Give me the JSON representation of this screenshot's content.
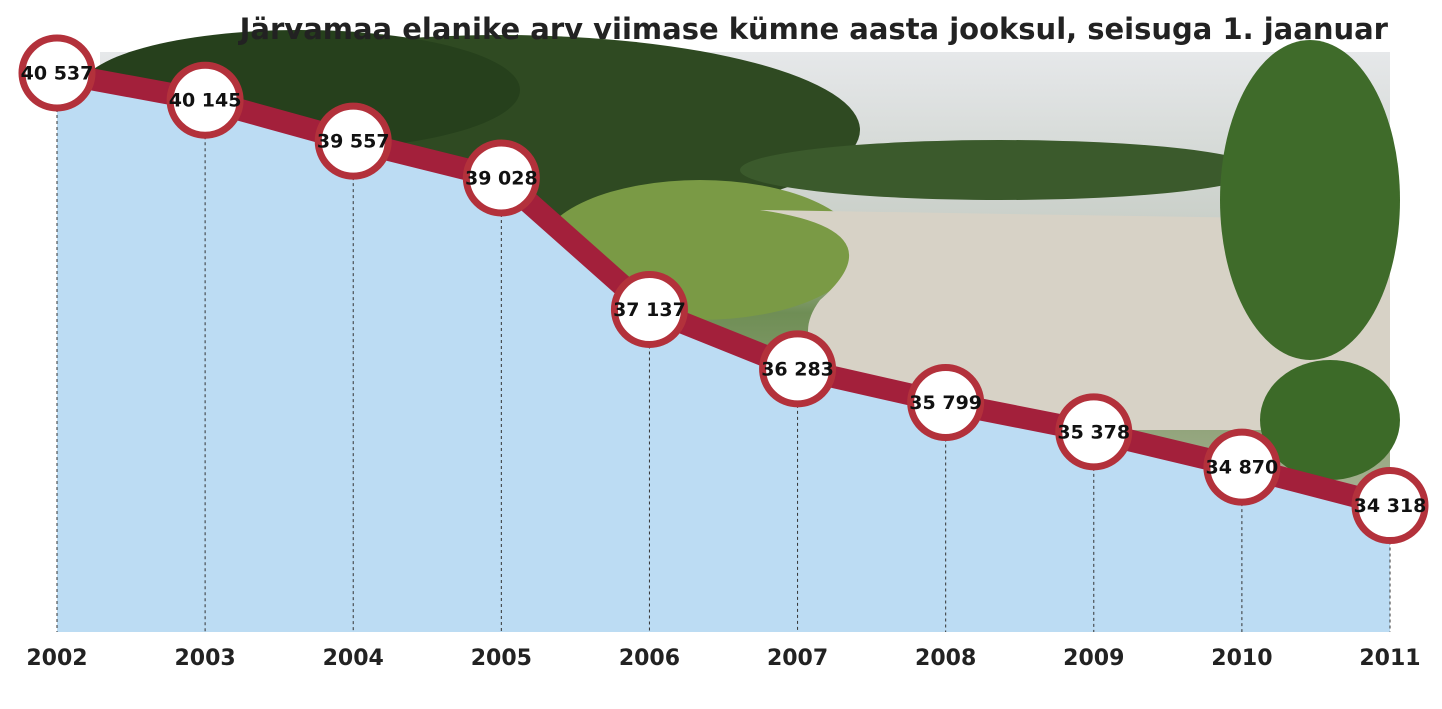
{
  "chart_data": {
    "type": "area",
    "title": "Järvamaa elanike arv viimase kümne aasta jooksul, seisuga 1. jaanuar",
    "x": [
      2002,
      2003,
      2004,
      2005,
      2006,
      2007,
      2008,
      2009,
      2010,
      2011
    ],
    "values": [
      40537,
      40145,
      39557,
      39028,
      37137,
      36283,
      35799,
      35378,
      34870,
      34318
    ],
    "value_labels": [
      "40 537",
      "40 145",
      "39 557",
      "39 028",
      "37 137",
      "36 283",
      "35 799",
      "35 378",
      "34 870",
      "34 318"
    ],
    "xlim": [
      2002,
      2011
    ],
    "ylim": [
      32500,
      41500
    ],
    "color": "#a3203b",
    "fill": "#bcdcf3"
  }
}
